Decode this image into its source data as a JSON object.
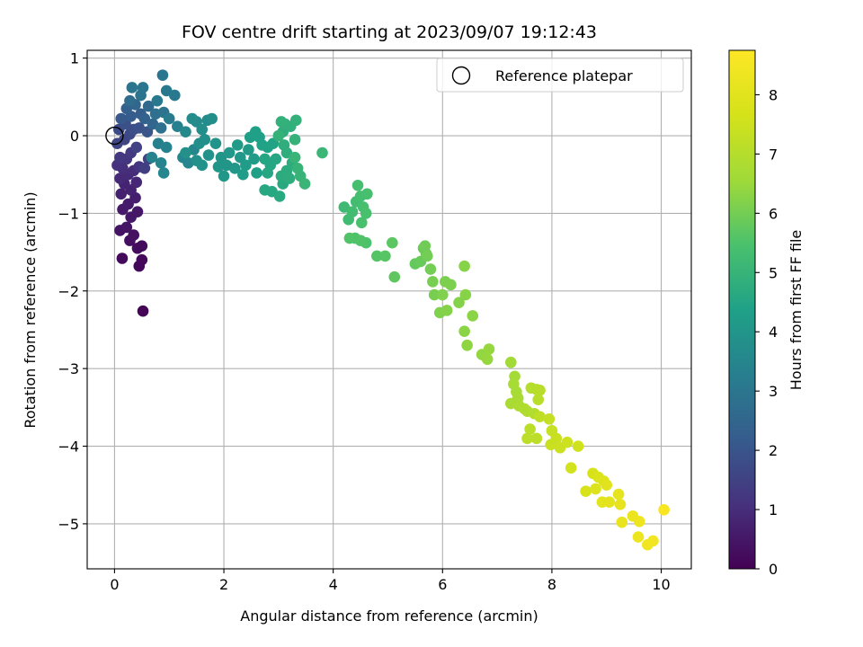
{
  "chart_data": {
    "type": "scatter",
    "title": "FOV centre drift starting at 2023/09/07 19:12:43",
    "xlabel": "Angular distance from reference (arcmin)",
    "ylabel": "Rotation from reference (arcmin)",
    "xlim": [
      -0.5,
      10.55
    ],
    "ylim": [
      -5.58,
      1.1
    ],
    "xticks": [
      0,
      2,
      4,
      6,
      8,
      10
    ],
    "yticks": [
      1,
      0,
      -1,
      -2,
      -3,
      -4,
      -5
    ],
    "grid": true,
    "legend": {
      "position": "top-right",
      "entries": [
        "Reference platepar"
      ]
    },
    "reference_point": {
      "x": 0,
      "y": 0
    },
    "colorbar": {
      "label": "Hours from first FF file",
      "range": [
        0,
        8.75
      ],
      "ticks": [
        0,
        1,
        2,
        3,
        4,
        5,
        6,
        7,
        8
      ],
      "colormap": "viridis"
    },
    "series": [
      {
        "columns": [
          "x",
          "y",
          "hours"
        ],
        "points": [
          [
            0.52,
            -2.26,
            0.08
          ],
          [
            0.45,
            -1.68,
            0.15
          ],
          [
            0.5,
            -1.6,
            0.18
          ],
          [
            0.14,
            -1.58,
            0.2
          ],
          [
            0.42,
            -1.45,
            0.25
          ],
          [
            0.5,
            -1.42,
            0.22
          ],
          [
            0.28,
            -1.35,
            0.3
          ],
          [
            0.35,
            -1.28,
            0.35
          ],
          [
            0.1,
            -1.22,
            0.4
          ],
          [
            0.22,
            -1.18,
            0.45
          ],
          [
            0.3,
            -1.05,
            0.5
          ],
          [
            0.15,
            -0.95,
            0.55
          ],
          [
            0.42,
            -0.98,
            0.5
          ],
          [
            0.25,
            -0.88,
            0.6
          ],
          [
            0.38,
            -0.8,
            0.65
          ],
          [
            0.12,
            -0.75,
            0.7
          ],
          [
            0.3,
            -0.7,
            0.75
          ],
          [
            0.18,
            -0.62,
            0.8
          ],
          [
            0.4,
            -0.6,
            0.85
          ],
          [
            0.1,
            -0.55,
            0.9
          ],
          [
            0.25,
            -0.5,
            0.95
          ],
          [
            0.35,
            -0.45,
            1.0
          ],
          [
            0.15,
            -0.42,
            1.05
          ],
          [
            0.05,
            -0.38,
            1.1
          ],
          [
            0.45,
            -0.4,
            1.15
          ],
          [
            0.22,
            -0.3,
            1.2
          ],
          [
            0.1,
            -0.28,
            1.25
          ],
          [
            0.3,
            -0.22,
            1.3
          ],
          [
            0.55,
            -0.42,
            1.4
          ],
          [
            0.62,
            -0.3,
            1.5
          ],
          [
            0.4,
            -0.15,
            1.5
          ],
          [
            0.05,
            -0.1,
            1.55
          ],
          [
            0.18,
            -0.05,
            1.6
          ],
          [
            0.28,
            0.02,
            1.7
          ],
          [
            0.08,
            0.08,
            1.75
          ],
          [
            0.35,
            0.08,
            1.8
          ],
          [
            0.2,
            0.15,
            1.85
          ],
          [
            0.45,
            0.1,
            1.9
          ],
          [
            0.6,
            0.05,
            2.0
          ],
          [
            0.12,
            0.22,
            2.1
          ],
          [
            0.3,
            0.25,
            2.2
          ],
          [
            0.48,
            0.28,
            2.25
          ],
          [
            0.22,
            0.35,
            2.3
          ],
          [
            0.55,
            0.22,
            2.4
          ],
          [
            0.7,
            0.15,
            2.5
          ],
          [
            0.38,
            0.4,
            2.5
          ],
          [
            0.62,
            0.38,
            2.6
          ],
          [
            0.28,
            0.45,
            2.7
          ],
          [
            0.85,
            0.1,
            2.8
          ],
          [
            0.75,
            0.28,
            2.8
          ],
          [
            0.9,
            0.3,
            2.9
          ],
          [
            0.48,
            0.52,
            2.9
          ],
          [
            0.32,
            0.62,
            3.0
          ],
          [
            0.52,
            0.62,
            3.0
          ],
          [
            0.88,
            0.78,
            3.0
          ],
          [
            0.95,
            0.58,
            3.1
          ],
          [
            1.1,
            0.52,
            3.1
          ],
          [
            0.78,
            0.45,
            3.1
          ],
          [
            1.0,
            0.22,
            3.2
          ],
          [
            1.15,
            0.12,
            3.3
          ],
          [
            0.8,
            -0.1,
            3.3
          ],
          [
            0.95,
            -0.15,
            3.4
          ],
          [
            0.68,
            -0.28,
            3.4
          ],
          [
            0.85,
            -0.35,
            3.45
          ],
          [
            0.9,
            -0.48,
            3.5
          ],
          [
            1.25,
            -0.28,
            3.5
          ],
          [
            1.35,
            -0.35,
            3.5
          ],
          [
            1.45,
            -0.18,
            3.55
          ],
          [
            1.3,
            0.05,
            3.6
          ],
          [
            1.5,
            0.18,
            3.65
          ],
          [
            1.42,
            0.22,
            3.7
          ],
          [
            1.7,
            0.2,
            3.7
          ],
          [
            1.78,
            0.22,
            3.75
          ],
          [
            1.6,
            0.08,
            3.75
          ],
          [
            1.55,
            -0.1,
            3.8
          ],
          [
            1.65,
            -0.05,
            3.8
          ],
          [
            1.3,
            -0.22,
            3.85
          ],
          [
            1.5,
            -0.32,
            3.85
          ],
          [
            1.6,
            -0.38,
            3.9
          ],
          [
            1.72,
            -0.25,
            3.9
          ],
          [
            1.85,
            -0.1,
            3.95
          ],
          [
            1.9,
            -0.4,
            4.0
          ],
          [
            2.05,
            -0.38,
            4.0
          ],
          [
            1.95,
            -0.28,
            4.0
          ],
          [
            2.0,
            -0.52,
            4.05
          ],
          [
            2.2,
            -0.42,
            4.05
          ],
          [
            2.1,
            -0.22,
            4.1
          ],
          [
            2.3,
            -0.28,
            4.1
          ],
          [
            2.25,
            -0.12,
            4.15
          ],
          [
            2.45,
            -0.18,
            4.15
          ],
          [
            2.55,
            -0.3,
            4.2
          ],
          [
            2.4,
            -0.38,
            4.2
          ],
          [
            2.35,
            -0.5,
            4.25
          ],
          [
            2.6,
            -0.48,
            4.3
          ],
          [
            2.48,
            -0.02,
            4.3
          ],
          [
            2.65,
            -0.02,
            4.35
          ],
          [
            2.58,
            0.05,
            4.35
          ],
          [
            2.7,
            -0.12,
            4.4
          ],
          [
            2.8,
            -0.15,
            4.4
          ],
          [
            2.9,
            -0.1,
            4.45
          ],
          [
            2.75,
            -0.3,
            4.5
          ],
          [
            2.85,
            -0.38,
            4.5
          ],
          [
            2.95,
            -0.3,
            4.55
          ],
          [
            2.8,
            -0.48,
            4.55
          ],
          [
            2.75,
            -0.7,
            4.6
          ],
          [
            2.88,
            -0.72,
            4.6
          ],
          [
            3.02,
            -0.78,
            4.65
          ],
          [
            3.08,
            -0.62,
            4.65
          ],
          [
            3.05,
            -0.52,
            4.7
          ],
          [
            3.15,
            -0.45,
            4.7
          ],
          [
            3.2,
            -0.55,
            4.75
          ],
          [
            3.25,
            -0.35,
            4.75
          ],
          [
            3.15,
            -0.22,
            4.8
          ],
          [
            3.1,
            -0.12,
            4.8
          ],
          [
            3.08,
            0.05,
            4.8
          ],
          [
            3.12,
            0.15,
            4.85
          ],
          [
            3.22,
            0.12,
            4.85
          ],
          [
            3.32,
            0.2,
            4.9
          ],
          [
            3.05,
            0.18,
            4.9
          ],
          [
            3.0,
            0.0,
            4.95
          ],
          [
            3.3,
            -0.05,
            4.95
          ],
          [
            3.35,
            -0.42,
            5.0
          ],
          [
            3.4,
            -0.52,
            5.0
          ],
          [
            3.48,
            -0.62,
            5.05
          ],
          [
            3.3,
            -0.28,
            5.05
          ],
          [
            3.8,
            -0.22,
            5.1
          ],
          [
            4.2,
            -0.92,
            5.2
          ],
          [
            4.28,
            -1.08,
            5.25
          ],
          [
            4.35,
            -0.98,
            5.3
          ],
          [
            4.42,
            -0.85,
            5.3
          ],
          [
            4.45,
            -0.64,
            5.35
          ],
          [
            4.5,
            -0.78,
            5.35
          ],
          [
            4.55,
            -0.92,
            5.4
          ],
          [
            4.62,
            -0.75,
            5.4
          ],
          [
            4.6,
            -1.0,
            5.45
          ],
          [
            4.52,
            -1.12,
            5.45
          ],
          [
            4.6,
            -1.38,
            5.5
          ],
          [
            4.4,
            -1.32,
            5.5
          ],
          [
            4.3,
            -1.32,
            5.55
          ],
          [
            4.5,
            -1.35,
            5.55
          ],
          [
            4.8,
            -1.55,
            5.6
          ],
          [
            4.95,
            -1.55,
            5.65
          ],
          [
            5.08,
            -1.38,
            5.7
          ],
          [
            5.12,
            -1.82,
            5.75
          ],
          [
            5.5,
            -1.65,
            5.8
          ],
          [
            5.6,
            -1.62,
            5.85
          ],
          [
            5.65,
            -1.45,
            5.9
          ],
          [
            5.7,
            -1.52,
            5.9
          ],
          [
            5.68,
            -1.42,
            5.95
          ],
          [
            5.72,
            -1.55,
            6.0
          ],
          [
            5.78,
            -1.72,
            6.0
          ],
          [
            5.82,
            -1.88,
            6.05
          ],
          [
            5.85,
            -2.05,
            6.05
          ],
          [
            6.05,
            -1.88,
            6.1
          ],
          [
            6.15,
            -1.92,
            6.1
          ],
          [
            6.0,
            -2.05,
            6.15
          ],
          [
            5.95,
            -2.28,
            6.15
          ],
          [
            6.08,
            -2.25,
            6.2
          ],
          [
            6.3,
            -2.15,
            6.2
          ],
          [
            6.42,
            -2.05,
            6.25
          ],
          [
            6.4,
            -1.68,
            6.25
          ],
          [
            6.55,
            -2.32,
            6.3
          ],
          [
            6.4,
            -2.52,
            6.3
          ],
          [
            6.45,
            -2.7,
            6.35
          ],
          [
            6.72,
            -2.82,
            6.4
          ],
          [
            6.82,
            -2.88,
            6.45
          ],
          [
            6.85,
            -2.75,
            6.45
          ],
          [
            7.25,
            -2.92,
            6.6
          ],
          [
            7.32,
            -3.1,
            6.65
          ],
          [
            7.3,
            -3.2,
            6.7
          ],
          [
            7.35,
            -3.3,
            6.7
          ],
          [
            7.38,
            -3.38,
            6.75
          ],
          [
            7.25,
            -3.45,
            6.75
          ],
          [
            7.4,
            -3.48,
            6.8
          ],
          [
            7.5,
            -3.52,
            6.85
          ],
          [
            7.55,
            -3.55,
            6.9
          ],
          [
            7.68,
            -3.58,
            6.95
          ],
          [
            7.62,
            -3.25,
            7.0
          ],
          [
            7.72,
            -3.27,
            7.0
          ],
          [
            7.78,
            -3.28,
            7.05
          ],
          [
            7.75,
            -3.4,
            7.05
          ],
          [
            7.6,
            -3.78,
            7.1
          ],
          [
            7.55,
            -3.9,
            7.15
          ],
          [
            7.72,
            -3.9,
            7.15
          ],
          [
            7.78,
            -3.62,
            7.2
          ],
          [
            7.95,
            -3.65,
            7.3
          ],
          [
            8.0,
            -3.8,
            7.35
          ],
          [
            7.98,
            -3.98,
            7.4
          ],
          [
            8.08,
            -3.9,
            7.4
          ],
          [
            8.15,
            -4.02,
            7.45
          ],
          [
            8.28,
            -3.95,
            7.5
          ],
          [
            8.48,
            -4.0,
            7.55
          ],
          [
            8.35,
            -4.28,
            7.6
          ],
          [
            8.62,
            -4.58,
            7.7
          ],
          [
            8.75,
            -4.35,
            7.75
          ],
          [
            8.85,
            -4.4,
            7.8
          ],
          [
            8.8,
            -4.55,
            7.85
          ],
          [
            8.95,
            -4.45,
            7.9
          ],
          [
            9.0,
            -4.5,
            7.95
          ],
          [
            8.92,
            -4.72,
            8.0
          ],
          [
            9.05,
            -4.72,
            8.05
          ],
          [
            9.22,
            -4.62,
            8.1
          ],
          [
            9.25,
            -4.75,
            8.15
          ],
          [
            9.28,
            -4.98,
            8.2
          ],
          [
            9.48,
            -4.9,
            8.25
          ],
          [
            9.6,
            -4.97,
            8.3
          ],
          [
            9.58,
            -5.17,
            8.35
          ],
          [
            9.75,
            -5.27,
            8.4
          ],
          [
            9.85,
            -5.22,
            8.45
          ],
          [
            10.05,
            -4.82,
            8.6
          ]
        ]
      }
    ]
  }
}
